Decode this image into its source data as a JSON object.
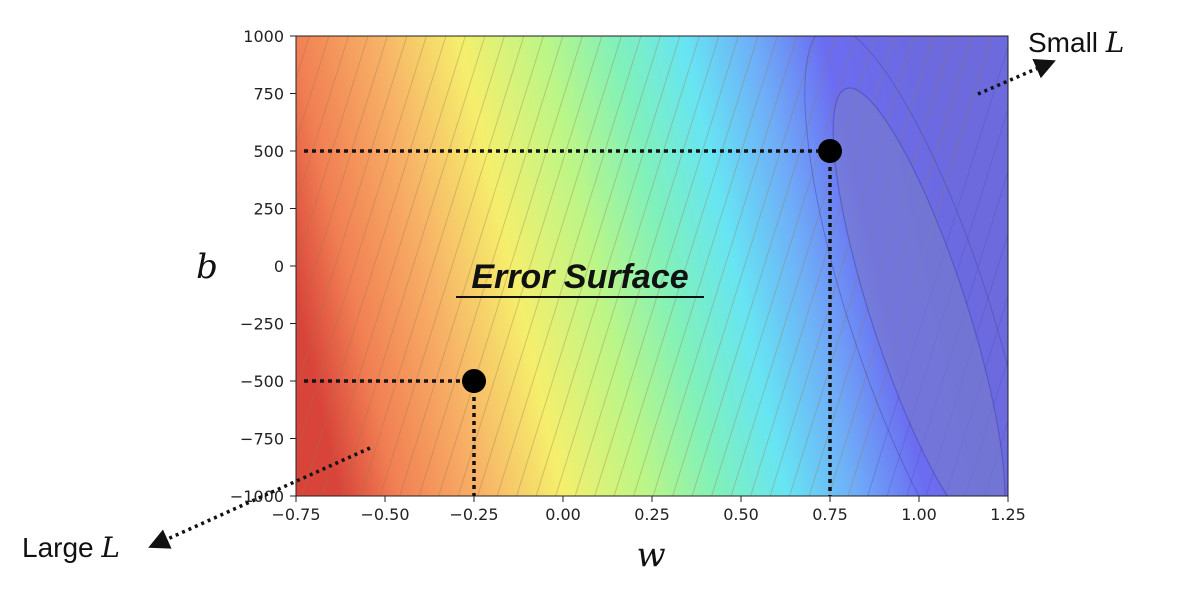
{
  "chart_data": {
    "type": "contour",
    "xlabel": "w",
    "ylabel": "b",
    "xlim": [
      -0.75,
      1.25
    ],
    "ylim": [
      -1000,
      1000
    ],
    "x_ticks": [
      "−0.75",
      "−0.50",
      "−0.25",
      "0.00",
      "0.25",
      "0.50",
      "0.75",
      "1.00",
      "1.25"
    ],
    "x_tick_values": [
      -0.75,
      -0.5,
      -0.25,
      0.0,
      0.25,
      0.5,
      0.75,
      1.0,
      1.25
    ],
    "y_ticks": [
      "1000",
      "750",
      "500",
      "250",
      "0",
      "−250",
      "−500",
      "−750",
      "−1000"
    ],
    "y_tick_values": [
      1000,
      750,
      500,
      250,
      0,
      -250,
      -500,
      -750,
      -1000
    ],
    "colormap": "jet",
    "grid": false,
    "minimum": {
      "w": 1.0,
      "b": -200
    },
    "points": [
      {
        "w": 0.75,
        "b": 500
      },
      {
        "w": -0.25,
        "b": -500
      }
    ],
    "annotation": "Error Surface",
    "labels": {
      "small": {
        "text": "Small ",
        "var": "L"
      },
      "large": {
        "text": "Large ",
        "var": "L"
      }
    }
  }
}
